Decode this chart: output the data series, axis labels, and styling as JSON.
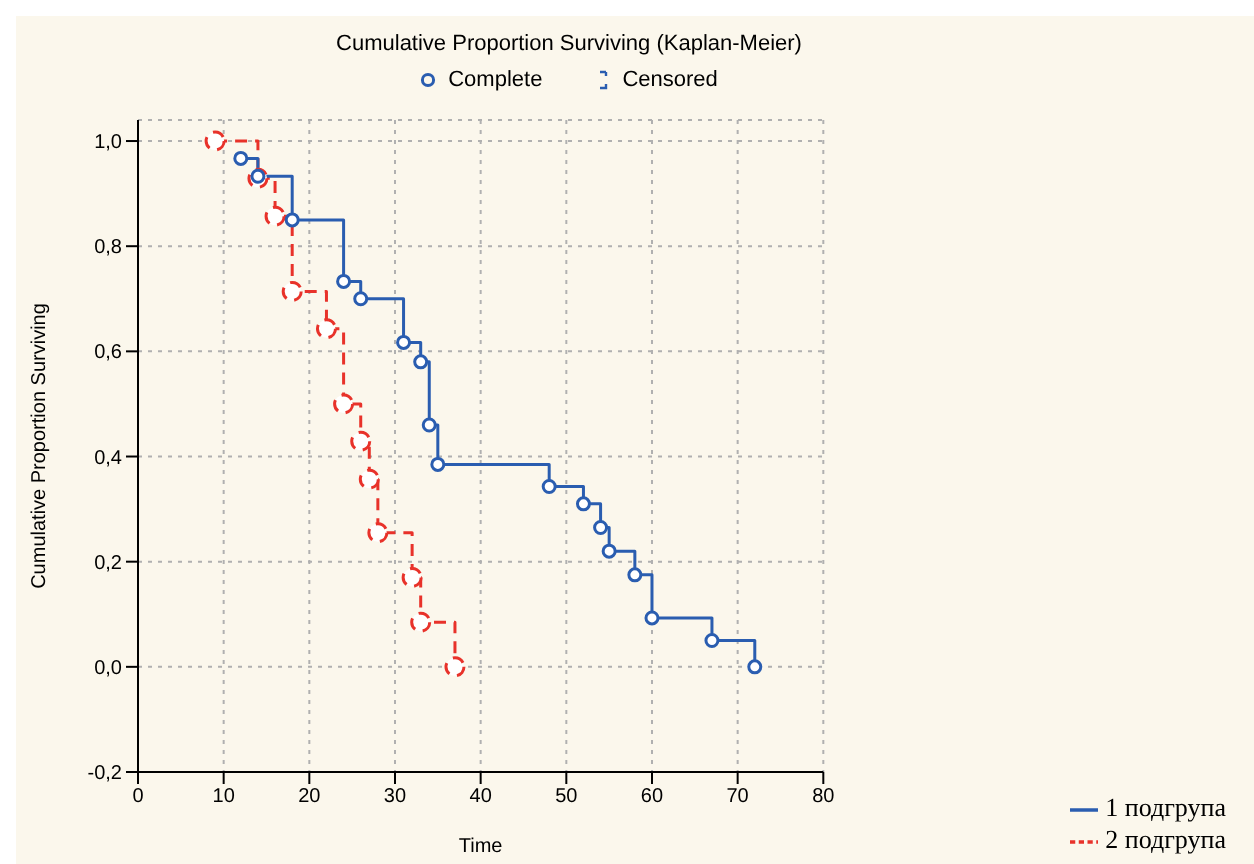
{
  "chart_data": {
    "type": "step",
    "title": "Cumulative Proportion Surviving (Kaplan-Meier)",
    "xlabel": "Time",
    "ylabel": "Cumulative Proportion Surviving",
    "annotations": [
      "Complete",
      "Censored"
    ],
    "series": [
      {
        "name": "1 подгрупа",
        "color": "#2a5db0",
        "line_style": "solid",
        "x": [
          12,
          14,
          18,
          24,
          26,
          31,
          33,
          34,
          35,
          48,
          52,
          54,
          55,
          58,
          60,
          67,
          72
        ],
        "values": [
          0.967,
          0.933,
          0.85,
          0.733,
          0.7,
          0.617,
          0.58,
          0.46,
          0.385,
          0.343,
          0.31,
          0.265,
          0.22,
          0.175,
          0.093,
          0.05,
          0
        ]
      },
      {
        "name": "2 подгрупа",
        "color": "#e8322a",
        "line_style": "dashed",
        "x": [
          9,
          14,
          16,
          18,
          22,
          24,
          26,
          27,
          28,
          32,
          33,
          37
        ],
        "values": [
          1,
          0.929,
          0.857,
          0.714,
          0.643,
          0.5,
          0.429,
          0.357,
          0.255,
          0.17,
          0.085,
          0
        ]
      }
    ],
    "xlim": [
      0,
      80
    ],
    "xticks": [
      0,
      10,
      20,
      30,
      40,
      50,
      60,
      70,
      80
    ],
    "ylim": [
      -0.2,
      1.04
    ],
    "yticks": [
      {
        "value": -0.2,
        "label": "-0,2"
      },
      {
        "value": 0,
        "label": "0,0"
      },
      {
        "value": 0.2,
        "label": "0,2"
      },
      {
        "value": 0.4,
        "label": "0,4"
      },
      {
        "value": 0.6,
        "label": "0,6"
      },
      {
        "value": 0.8,
        "label": "0,8"
      },
      {
        "value": 1,
        "label": "1,0"
      }
    ],
    "grid": true,
    "legend": "bottom right",
    "marker": "circle"
  }
}
